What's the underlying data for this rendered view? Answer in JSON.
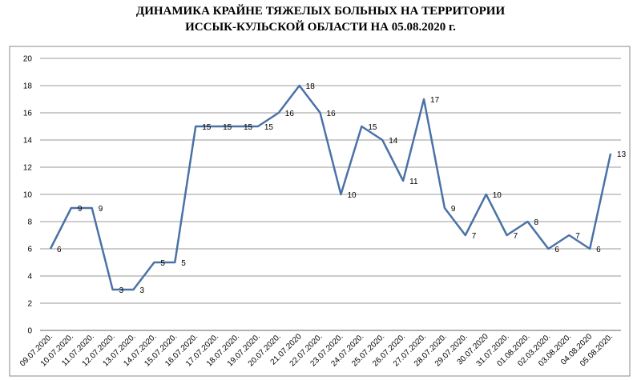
{
  "chart_data": {
    "type": "line",
    "title": [
      "ДИНАМИКА КРАЙНЕ ТЯЖЕЛЫХ БОЛЬНЫХ НА ТЕРРИТОРИИ",
      "ИССЫК-КУЛЬСКОЙ ОБЛАСТИ НА 05.08.2020 г."
    ],
    "categories": [
      "09.07.2020.",
      "10.07.2020.",
      "11.07.2020.",
      "12.07.2020.",
      "13.07.2020.",
      "14.07.2020.",
      "15.07.2020.",
      "16.07.2020.",
      "17.07.2020.",
      "18.07.2020.",
      "19.07.2020.",
      "20.07.2020.",
      "21.07.2020",
      "22.07.2020.",
      "23.07.2020.",
      "24.07.2020.",
      "25.07.2020.",
      "26.07.2020.",
      "27.07.2020.",
      "28.07.2020.",
      "29.07.2020.",
      "30.07.2020",
      "31.07.2020.",
      "01.08.2020.",
      "02.03.2020.",
      "03.08.2020.",
      "04.08.2020",
      "05.08.2020."
    ],
    "values": [
      6,
      9,
      9,
      3,
      3,
      5,
      5,
      15,
      15,
      15,
      15,
      16,
      18,
      16,
      10,
      15,
      14,
      11,
      17,
      9,
      7,
      10,
      7,
      8,
      6,
      7,
      6,
      13
    ],
    "color": "#4a72a6",
    "ylim": [
      0,
      20
    ],
    "yticks": [
      0,
      2,
      4,
      6,
      8,
      10,
      12,
      14,
      16,
      18,
      20
    ],
    "grid": true
  }
}
